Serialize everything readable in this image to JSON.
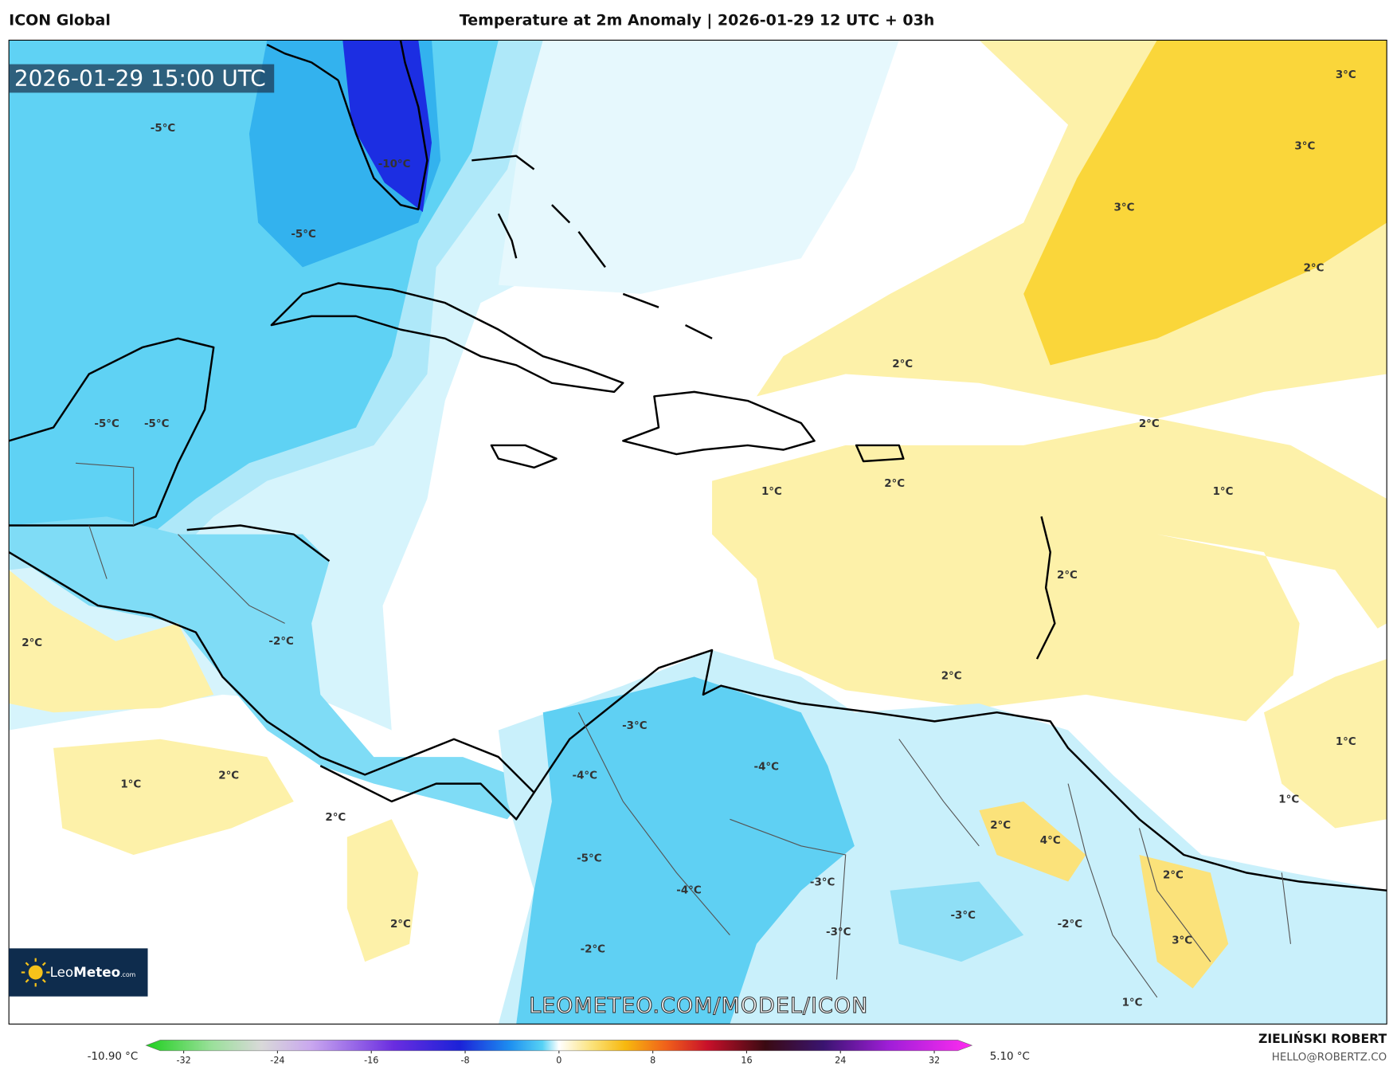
{
  "header": {
    "model": "ICON Global",
    "title": "Temperature at 2m Anomaly | 2026-01-29 12 UTC + 03h"
  },
  "map": {
    "valid_time": "2026-01-29 15:00 UTC",
    "contour_labels": [
      "-5°C",
      "-10°C",
      "-5°C",
      "-5°C",
      "-5°C",
      "3°C",
      "3°C",
      "3°C",
      "2°C",
      "2°C",
      "2°C",
      "1°C",
      "2°C",
      "1°C",
      "2°C",
      "2°C",
      "-2°C",
      "2°C",
      "1°C",
      "-3°C",
      "-4°C",
      "-4°C",
      "1°C",
      "2°C",
      "2°C",
      "1°C",
      "2°C",
      "4°C",
      "-5°C",
      "2°C",
      "-4°C",
      "-3°C",
      "2°C",
      "-3°C",
      "-2°C",
      "-3°C",
      "3°C",
      "-2°C",
      "1°C"
    ],
    "watermark": "LEOMETEO.COM/MODEL/ICON",
    "logo": {
      "name": "Leo",
      "name_bold": "Meteo",
      "suffix": ".com"
    }
  },
  "colorbar": {
    "min_label": "-10.90 °C",
    "max_label": "5.10 °C",
    "lim": [
      -34,
      34
    ],
    "ticks": [
      -32,
      -24,
      -16,
      -8,
      0,
      8,
      16,
      24,
      32
    ]
  },
  "footer": {
    "author": "ZIELIŃSKI ROBERT",
    "email": "HELLO@ROBERTZ.CO"
  }
}
